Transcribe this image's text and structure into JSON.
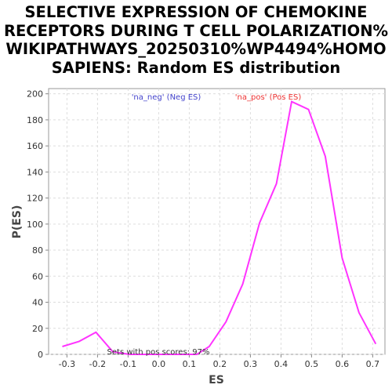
{
  "title_lines": [
    "SELECTIVE EXPRESSION OF CHEMOKINE",
    "RECEPTORS DURING T CELL POLARIZATION%",
    "WIKIPATHWAYS_20250310%WP4494%HOMO",
    "SAPIENS: Random ES distribution"
  ],
  "chart_data": {
    "type": "line",
    "title": "SELECTIVE EXPRESSION OF CHEMOKINE RECEPTORS DURING T CELL POLARIZATION% WIKIPATHWAYS_20250310%WP4494%HOMO SAPIENS: Random ES distribution",
    "xlabel": "ES",
    "ylabel": "P(ES)",
    "xlim": [
      -0.36,
      0.74
    ],
    "ylim": [
      0,
      204
    ],
    "xticks": [
      "-0.3",
      "-0.2",
      "-0.1",
      "0.0",
      "0.1",
      "0.2",
      "0.3",
      "0.4",
      "0.5",
      "0.6",
      "0.7"
    ],
    "xtick_values": [
      -0.3,
      -0.2,
      -0.1,
      0.0,
      0.1,
      0.2,
      0.3,
      0.4,
      0.5,
      0.6,
      0.7
    ],
    "yticks": [
      "0",
      "20",
      "40",
      "60",
      "80",
      "100",
      "120",
      "140",
      "160",
      "180",
      "200"
    ],
    "ytick_values": [
      0,
      20,
      40,
      60,
      80,
      100,
      120,
      140,
      160,
      180,
      200
    ],
    "grid": true,
    "series": [
      {
        "color": "#ff33ff",
        "x": [
          -0.315,
          -0.26,
          -0.205,
          -0.15,
          -0.095,
          -0.04,
          0.015,
          0.07,
          0.125,
          0.165,
          0.22,
          0.275,
          0.33,
          0.385,
          0.435,
          0.49,
          0.545,
          0.6,
          0.655,
          0.71
        ],
        "y": [
          6,
          10,
          17,
          2,
          0,
          0,
          0,
          0,
          0,
          6,
          25,
          54,
          101,
          131,
          194,
          188,
          152,
          74,
          32,
          8
        ]
      }
    ],
    "legend": [
      {
        "label": "'na_neg' (Neg ES)",
        "color": "#4444cc"
      },
      {
        "label": "'na_pos' (Pos ES)",
        "color": "#ee3333"
      }
    ],
    "annotation": "Sets with pos scores: 97%"
  }
}
